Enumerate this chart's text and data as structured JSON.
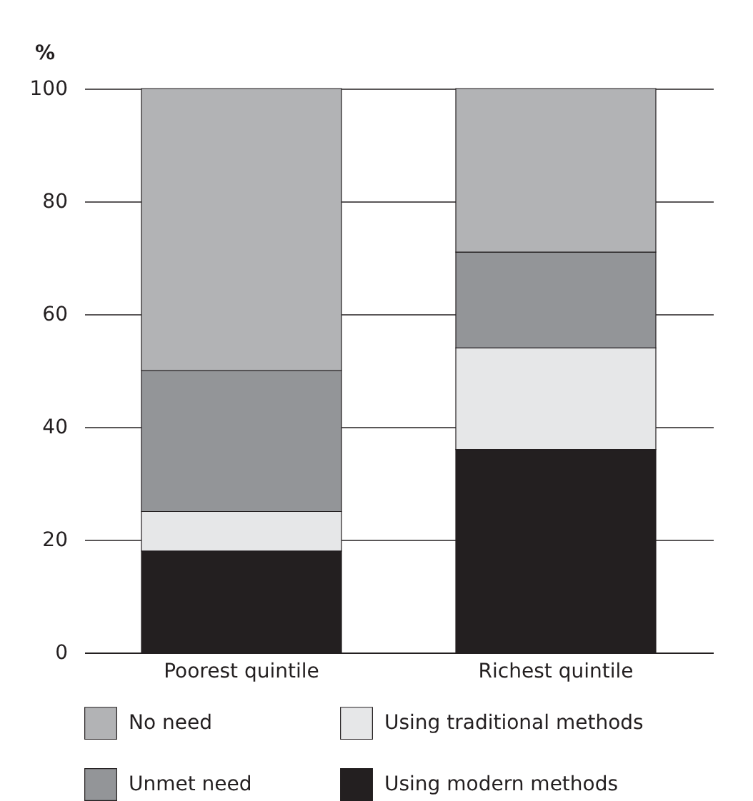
{
  "chart_data": {
    "type": "bar",
    "ylabel": "%",
    "categories": [
      "Poorest quintile",
      "Richest quintile"
    ],
    "stacked": true,
    "ylim": [
      0,
      100
    ],
    "yticks": [
      0,
      20,
      40,
      60,
      80,
      100
    ],
    "grid": "y",
    "legend": "bottom",
    "series": [
      {
        "name": "Using modern methods",
        "color": "#231f20",
        "values": [
          18,
          36
        ]
      },
      {
        "name": "Using traditional methods",
        "color": "#e6e7e8",
        "values": [
          7,
          18
        ]
      },
      {
        "name": "Unmet need",
        "color": "#939598",
        "values": [
          25,
          17
        ]
      },
      {
        "name": "No need",
        "color": "#b2b3b5",
        "values": [
          50,
          29
        ]
      }
    ]
  }
}
